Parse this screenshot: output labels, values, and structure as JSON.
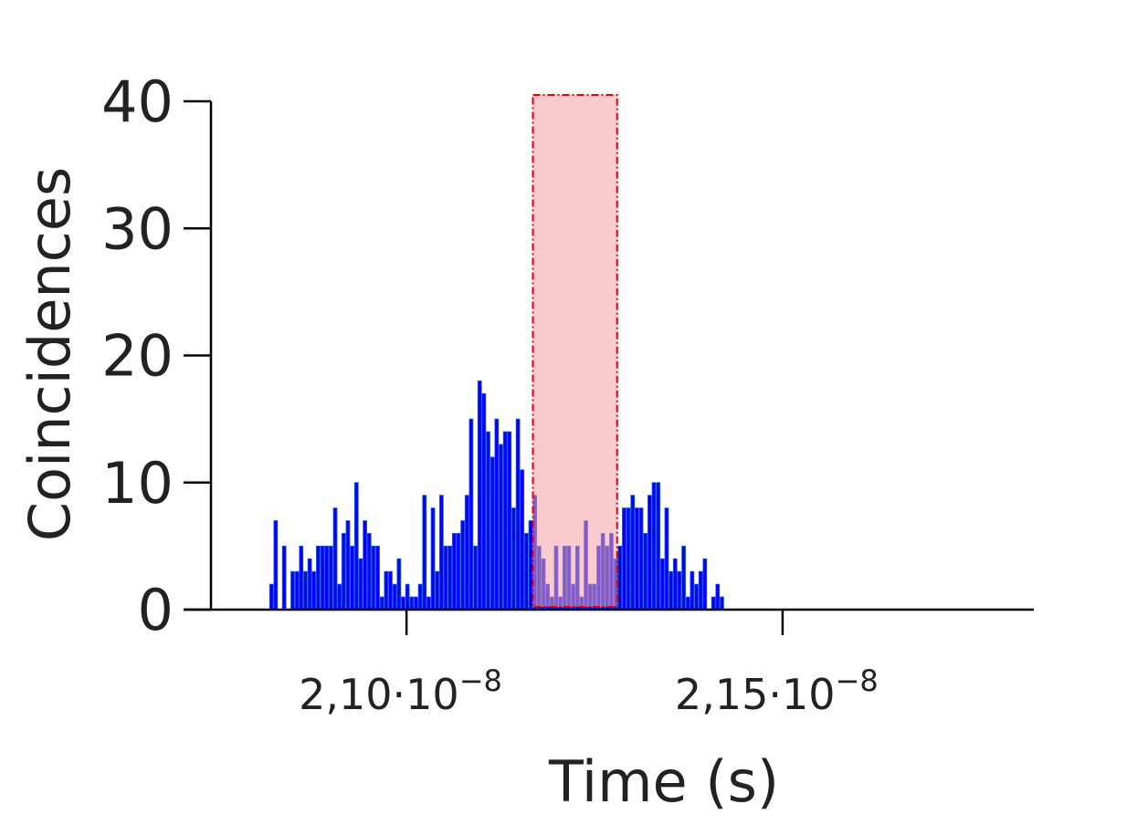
{
  "chart_data": {
    "type": "bar",
    "xlabel": "Time (s)",
    "ylabel": "Coincidences",
    "ylim": [
      0,
      40
    ],
    "xlim": [
      2.074e-08,
      2.1834e-08
    ],
    "yticks": [
      {
        "value": 0,
        "label": "0"
      },
      {
        "value": 10,
        "label": "10"
      },
      {
        "value": 20,
        "label": "20"
      },
      {
        "value": 30,
        "label": "30"
      },
      {
        "value": 40,
        "label": "40"
      }
    ],
    "xticks": [
      {
        "value": 2.1e-08,
        "mantissa": "2,10·10",
        "exponent": "−8"
      },
      {
        "value": 2.15e-08,
        "mantissa": "2,15·10",
        "exponent": "−8"
      }
    ],
    "bin_start": 2.0818e-08,
    "bin_width": 5.65e-12,
    "values": [
      2,
      7,
      0,
      5,
      0,
      3,
      3,
      5,
      3,
      4,
      3,
      5,
      5,
      5,
      5,
      8,
      2,
      6,
      7,
      5,
      10,
      4,
      7,
      6,
      5,
      5,
      1,
      3,
      3,
      2,
      4,
      1,
      2,
      1,
      1,
      2,
      9,
      1,
      8,
      3,
      9,
      5,
      5,
      6,
      6,
      7,
      9,
      15,
      5,
      18,
      17,
      14,
      12,
      15,
      13,
      14,
      14,
      8,
      15,
      11,
      6,
      7,
      9,
      5,
      4,
      2,
      1,
      5,
      1,
      5,
      5,
      2,
      5,
      1,
      7,
      2,
      2,
      5,
      6,
      5,
      6,
      4,
      5,
      8,
      8,
      9,
      8,
      8,
      6,
      9,
      10,
      10,
      4,
      8,
      3,
      4,
      3,
      5,
      1,
      3,
      2,
      3,
      4,
      0,
      1,
      2,
      1
    ],
    "highlight": {
      "x_start": 2.1168e-08,
      "x_end": 2.128e-08,
      "y_top": 40.5
    },
    "colors": {
      "bar_fill": "#0000ff",
      "bar_edge": "#1f5fd6",
      "highlight_fill": "#f4a0a6",
      "highlight_edge": "#e00000",
      "axis": "#000000",
      "text": "#222222"
    }
  }
}
